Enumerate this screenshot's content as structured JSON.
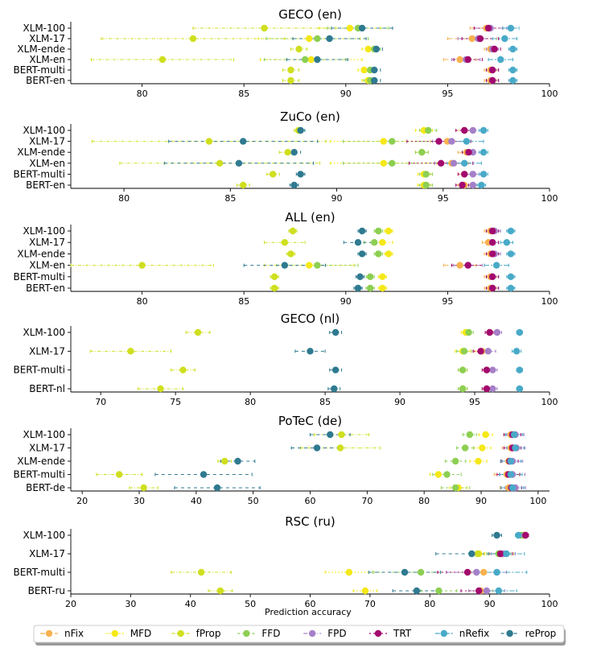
{
  "x_axis_label": "Prediction accuracy",
  "legend": [
    {
      "key": "nFix",
      "label": "nFix",
      "color": "#f7b24f"
    },
    {
      "key": "MFD",
      "label": "MFD",
      "color": "#f5e818"
    },
    {
      "key": "fProp",
      "label": "fProp",
      "color": "#cfdf1f"
    },
    {
      "key": "FFD",
      "label": "FFD",
      "color": "#8dcf52"
    },
    {
      "key": "FPD",
      "label": "FPD",
      "color": "#a580c8"
    },
    {
      "key": "TRT",
      "label": "TRT",
      "color": "#a30a6e"
    },
    {
      "key": "nRefix",
      "label": "nRefix",
      "color": "#48aac8"
    },
    {
      "key": "reProp",
      "label": "reProp",
      "color": "#2f7a90"
    }
  ],
  "chart_data": [
    {
      "type": "scatter",
      "title": "GECO (en)",
      "xlim": [
        76.5,
        100
      ],
      "xticks": [
        80,
        85,
        90,
        95,
        100
      ],
      "categories": [
        "XLM-100",
        "XLM-17",
        "XLM-ende",
        "XLM-en",
        "BERT-multi",
        "BERT-en"
      ],
      "series": [
        {
          "name": "nFix",
          "values": [
            96.9,
            96.2,
            97.1,
            95.6,
            97.1,
            97.1
          ],
          "err": [
            0.8,
            1.2,
            0.3,
            0.8,
            0.3,
            0.3
          ]
        },
        {
          "name": "MFD",
          "values": [
            90.2,
            88.2,
            91.1,
            88.3,
            90.9,
            91.1
          ],
          "err": [
            1.5,
            2.5,
            0.3,
            2.5,
            0.3,
            0.3
          ]
        },
        {
          "name": "fProp",
          "values": [
            86,
            82.5,
            87.7,
            81,
            87.3,
            87.3
          ],
          "err": [
            3.5,
            4.5,
            0.4,
            3.5,
            0.4,
            0.4
          ]
        },
        {
          "name": "FFD",
          "values": [
            90.6,
            88.6,
            91.4,
            88,
            91.2,
            91.2
          ],
          "err": [
            1.5,
            2.5,
            0.3,
            2,
            0.3,
            0.3
          ]
        },
        {
          "name": "FPD",
          "values": [
            97.1,
            96.5,
            97.2,
            95.9,
            97.2,
            97.2
          ],
          "err": [
            0.8,
            1,
            0.3,
            0.7,
            0.3,
            0.3
          ]
        },
        {
          "name": "TRT",
          "values": [
            97.0,
            96.6,
            97.3,
            96.0,
            97.2,
            97.2
          ],
          "err": [
            0.7,
            0.9,
            0.3,
            0.7,
            0.3,
            0.3
          ]
        },
        {
          "name": "nRefix",
          "values": [
            98.1,
            97.8,
            98.2,
            97.6,
            98.2,
            98.2
          ],
          "err": [
            0.4,
            0.6,
            0.2,
            0.6,
            0.2,
            0.2
          ]
        },
        {
          "name": "reProp",
          "values": [
            90.8,
            89.2,
            91.5,
            88.6,
            91.4,
            91.4
          ],
          "err": [
            1.5,
            1.8,
            0.3,
            1.5,
            0.3,
            0.3
          ]
        }
      ]
    },
    {
      "type": "scatter",
      "title": "ZuCo (en)",
      "xlim": [
        77.5,
        100
      ],
      "xticks": [
        80,
        85,
        90,
        95,
        100
      ],
      "categories": [
        "XLM-100",
        "XLM-17",
        "XLM-ende",
        "XLM-en",
        "BERT-multi",
        "BERT-en"
      ],
      "series": [
        {
          "name": "nFix",
          "values": [
            96.0,
            95.2,
            96.1,
            95.4,
            96.0,
            96.0
          ],
          "err": [
            0.4,
            0.8,
            0.4,
            0.8,
            0.3,
            0.3
          ]
        },
        {
          "name": "MFD",
          "values": [
            94.1,
            92.2,
            94.0,
            92.2,
            94.1,
            94.1
          ],
          "err": [
            0.4,
            2.5,
            0.3,
            2.5,
            0.3,
            0.3
          ]
        },
        {
          "name": "fProp",
          "values": [
            88.2,
            84.0,
            87.7,
            84.5,
            87.0,
            85.6
          ],
          "err": [
            0.2,
            5.5,
            0.4,
            4.7,
            0.3,
            0.3
          ]
        },
        {
          "name": "FFD",
          "values": [
            94.3,
            92.6,
            94.0,
            92.6,
            94.2,
            94.2
          ],
          "err": [
            0.4,
            2.3,
            0.3,
            2.3,
            0.3,
            0.3
          ]
        },
        {
          "name": "FPD",
          "values": [
            96.4,
            95.4,
            96.4,
            95.5,
            96.4,
            96.4
          ],
          "err": [
            0.4,
            0.9,
            0.4,
            0.9,
            0.3,
            0.3
          ]
        },
        {
          "name": "TRT",
          "values": [
            96.0,
            94.8,
            96.2,
            94.9,
            96.0,
            95.9
          ],
          "err": [
            0.4,
            1.5,
            0.3,
            1.5,
            0.3,
            0.3
          ]
        },
        {
          "name": "nRefix",
          "values": [
            96.9,
            96.1,
            96.9,
            96.0,
            96.9,
            96.8
          ],
          "err": [
            0.2,
            0.8,
            0.2,
            0.8,
            0.2,
            0.2
          ]
        },
        {
          "name": "reProp",
          "values": [
            88.3,
            85.6,
            88.0,
            85.4,
            88.3,
            88.0
          ],
          "err": [
            0.2,
            3.5,
            0.3,
            3.5,
            0.2,
            0.2
          ]
        }
      ]
    },
    {
      "type": "scatter",
      "title": "ALL (en)",
      "xlim": [
        76.5,
        100
      ],
      "xticks": [
        80,
        85,
        90,
        95,
        100
      ],
      "categories": [
        "XLM-100",
        "XLM-17",
        "XLM-ende",
        "XLM-en",
        "BERT-multi",
        "BERT-en"
      ],
      "series": [
        {
          "name": "nFix",
          "values": [
            97.1,
            97.0,
            97.1,
            95.6,
            97.1,
            97.1
          ],
          "err": [
            0.3,
            0.3,
            0.3,
            0.8,
            0.3,
            0.3
          ]
        },
        {
          "name": "MFD",
          "values": [
            92.1,
            91.8,
            92.1,
            88.2,
            91.8,
            91.8
          ],
          "err": [
            0.2,
            0.5,
            0.2,
            2.2,
            0.2,
            0.2
          ]
        },
        {
          "name": "fProp",
          "values": [
            87.4,
            87.0,
            87.3,
            80,
            86.5,
            86.5
          ],
          "err": [
            0.2,
            1,
            0.2,
            3.5,
            0.2,
            0.2
          ]
        },
        {
          "name": "FFD",
          "values": [
            91.6,
            91.4,
            91.6,
            88.6,
            91.2,
            91.2
          ],
          "err": [
            0.2,
            0.5,
            0.2,
            2,
            0.2,
            0.2
          ]
        },
        {
          "name": "FPD",
          "values": [
            97.3,
            97.2,
            97.3,
            96.0,
            97.2,
            97.2
          ],
          "err": [
            0.3,
            0.3,
            0.3,
            0.7,
            0.3,
            0.3
          ]
        },
        {
          "name": "TRT",
          "values": [
            97.2,
            97.2,
            97.2,
            96.0,
            97.2,
            97.2
          ],
          "err": [
            0.3,
            0.3,
            0.3,
            0.8,
            0.3,
            0.3
          ]
        },
        {
          "name": "nRefix",
          "values": [
            98.1,
            97.9,
            98.1,
            97.4,
            98.1,
            98.1
          ],
          "err": [
            0.2,
            0.3,
            0.2,
            0.6,
            0.2,
            0.2
          ]
        },
        {
          "name": "reProp",
          "values": [
            90.8,
            90.6,
            90.8,
            87.0,
            90.7,
            90.6
          ],
          "err": [
            0.2,
            0.7,
            0.2,
            2,
            0.2,
            0.2
          ]
        }
      ]
    },
    {
      "type": "scatter",
      "title": "GECO (nl)",
      "xlim": [
        68,
        100
      ],
      "xticks": [
        70,
        75,
        80,
        85,
        90,
        95,
        100
      ],
      "categories": [
        "XLM-100",
        "XLM-17",
        "BERT-multi",
        "BERT-nl"
      ],
      "series": [
        {
          "name": "nFix",
          "values": [
            96.0,
            95.5,
            95.8,
            95.8
          ],
          "err": [
            0.3,
            0.5,
            0.3,
            0.3
          ]
        },
        {
          "name": "MFD",
          "values": [
            94.4,
            94.2,
            94.2,
            94.2
          ],
          "err": [
            0.3,
            0.5,
            0.3,
            0.3
          ]
        },
        {
          "name": "fProp",
          "values": [
            76.5,
            72,
            75.5,
            74
          ],
          "err": [
            0.8,
            2.7,
            0.8,
            1.5
          ]
        },
        {
          "name": "FFD",
          "values": [
            94.6,
            94.3,
            94.2,
            94.2
          ],
          "err": [
            0.3,
            0.5,
            0.3,
            0.3
          ]
        },
        {
          "name": "FPD",
          "values": [
            96.5,
            95.9,
            96.2,
            96.2
          ],
          "err": [
            0.3,
            0.5,
            0.3,
            0.3
          ]
        },
        {
          "name": "TRT",
          "values": [
            96.0,
            95.4,
            95.8,
            95.8
          ],
          "err": [
            0.3,
            0.5,
            0.3,
            0.3
          ]
        },
        {
          "name": "nRefix",
          "values": [
            98.0,
            97.8,
            98.0,
            98.0
          ],
          "err": [
            0.2,
            0.3,
            0.2,
            0.2
          ]
        },
        {
          "name": "reProp",
          "values": [
            85.7,
            84.0,
            85.7,
            85.6
          ],
          "err": [
            0.4,
            1,
            0.4,
            0.4
          ]
        }
      ]
    },
    {
      "type": "scatter",
      "title": "PoTeC (de)",
      "xlim": [
        18,
        102
      ],
      "xticks": [
        20,
        30,
        40,
        50,
        60,
        70,
        80,
        90,
        100
      ],
      "categories": [
        "XLM-100",
        "XLM-17",
        "XLM-ende",
        "BERT-multi",
        "BERT-de"
      ],
      "series": [
        {
          "name": "nFix",
          "values": [
            95.2,
            95.2,
            94.8,
            94.5,
            94.8
          ],
          "err": [
            1.2,
            1.5,
            1.2,
            2.2,
            1.5
          ]
        },
        {
          "name": "MFD",
          "values": [
            90.8,
            90.2,
            89.5,
            82.5,
            86.0
          ],
          "err": [
            1.2,
            1.5,
            1.5,
            1.5,
            1.5
          ]
        },
        {
          "name": "fProp",
          "values": [
            65.5,
            65.3,
            45,
            26.5,
            30.8
          ],
          "err": [
            4.8,
            7,
            1.2,
            4,
            2.5
          ]
        },
        {
          "name": "FFD",
          "values": [
            88,
            87.2,
            85.5,
            84,
            85.5
          ],
          "err": [
            1.2,
            1.5,
            1.8,
            2.5,
            2.5
          ]
        },
        {
          "name": "FPD",
          "values": [
            96.0,
            96.2,
            95.5,
            95.5,
            96.0
          ],
          "err": [
            1.5,
            1.5,
            1.8,
            2.2,
            1.8
          ]
        },
        {
          "name": "TRT",
          "values": [
            95.5,
            95.5,
            95.0,
            94.8,
            95.3
          ],
          "err": [
            1.5,
            1.5,
            1.5,
            2,
            1.8
          ]
        },
        {
          "name": "nRefix",
          "values": [
            95.8,
            96.0,
            95.2,
            95.2,
            95.5
          ],
          "err": [
            1.5,
            1.5,
            1.8,
            2,
            2
          ]
        },
        {
          "name": "reProp",
          "values": [
            63.5,
            61.2,
            47.3,
            41.3,
            43.7
          ],
          "err": [
            3.5,
            4.5,
            3,
            8.5,
            7.5
          ]
        }
      ]
    },
    {
      "type": "scatter",
      "title": "RSC (ru)",
      "xlim": [
        20,
        100
      ],
      "xticks": [
        20,
        30,
        40,
        50,
        60,
        70,
        80,
        90,
        100
      ],
      "categories": [
        "XLM-100",
        "XLM-17",
        "BERT-multi",
        "BERT-ru"
      ],
      "series": [
        {
          "name": "nFix",
          "values": [
            95.6,
            92.0,
            89.0,
            88.5
          ],
          "err": [
            0.5,
            2,
            2,
            2
          ]
        },
        {
          "name": "MFD",
          "values": [
            95.8,
            88.2,
            66.5,
            69.2
          ],
          "err": [
            0.5,
            1,
            4,
            2
          ]
        },
        {
          "name": "fProp",
          "values": [
            95.7,
            88.0,
            41.8,
            45.0
          ],
          "err": [
            0.5,
            1,
            5,
            2
          ]
        },
        {
          "name": "FFD",
          "values": [
            95.3,
            91.5,
            78.5,
            81.5
          ],
          "err": [
            0.5,
            2,
            8,
            3
          ]
        },
        {
          "name": "FPD",
          "values": [
            95.9,
            92.3,
            87.8,
            89.5
          ],
          "err": [
            0.5,
            2,
            5,
            3
          ]
        },
        {
          "name": "TRT",
          "values": [
            96.0,
            91.8,
            86.3,
            88.2
          ],
          "err": [
            0.5,
            2,
            5,
            3
          ]
        },
        {
          "name": "nRefix",
          "values": [
            94.8,
            92.8,
            91.2,
            91.5
          ],
          "err": [
            0.5,
            3,
            5,
            3
          ]
        },
        {
          "name": "reProp",
          "values": [
            91.2,
            87.0,
            75.8,
            77.8
          ],
          "err": [
            0.8,
            6,
            6,
            4
          ]
        }
      ]
    }
  ]
}
